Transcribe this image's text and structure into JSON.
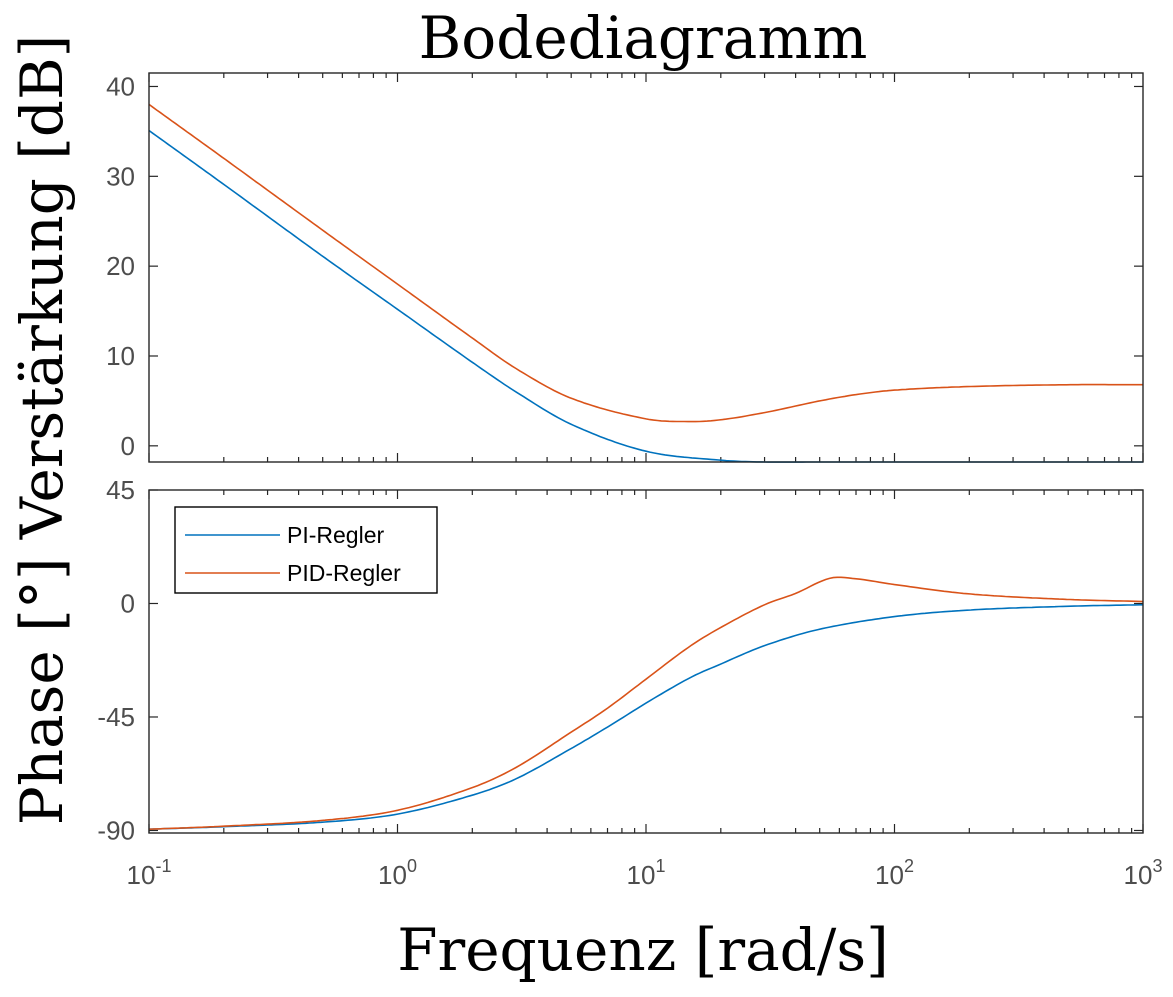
{
  "chart_data": {
    "type": "line",
    "title": "Bodediagramm",
    "xlabel": "Frequenz [rad/s]",
    "ylabel": "Phase [°] Verstärkung [dB]",
    "xscale": "log",
    "xlim": [
      0.1,
      1000
    ],
    "x_ticks": [
      {
        "base": "10",
        "exp": "-1"
      },
      {
        "base": "10",
        "exp": "0"
      },
      {
        "base": "10",
        "exp": "1"
      },
      {
        "base": "10",
        "exp": "2"
      },
      {
        "base": "10",
        "exp": "3"
      }
    ],
    "legend": {
      "placement": "top-left",
      "entries": [
        "PI-Regler",
        "PID-Regler"
      ]
    },
    "colors": {
      "pi": "#0072BD",
      "pid": "#D95319",
      "axes": "#262626",
      "ticklabels": "#4d4d4d"
    },
    "subplots": [
      {
        "name": "magnitude",
        "unit": "dB",
        "ylim": [
          -1.8,
          41.5
        ],
        "yticks": [
          "40",
          "30",
          "20",
          "10",
          "0"
        ],
        "ytick_values": [
          40,
          30,
          20,
          10,
          0
        ],
        "series": [
          {
            "name": "PI-Regler",
            "x": [
              0.1,
              0.2,
              0.5,
              1,
              2,
              3,
              5,
              10,
              20,
              30,
              50,
              100,
              200,
              500,
              1000
            ],
            "y": [
              35.1,
              29.1,
              21.1,
              15.2,
              9.3,
              6.0,
              2.4,
              -0.6,
              -1.6,
              -1.8,
              -1.8,
              -1.8,
              -1.8,
              -1.8,
              -1.8
            ]
          },
          {
            "name": "PID-Regler",
            "x": [
              0.1,
              0.2,
              0.5,
              1,
              2,
              3,
              5,
              10,
              15,
              20,
              30,
              50,
              70,
              100,
              200,
              500,
              1000
            ],
            "y": [
              38.0,
              32.0,
              24.0,
              18.0,
              12.0,
              8.6,
              5.3,
              3.0,
              2.7,
              2.9,
              3.7,
              5.0,
              5.7,
              6.2,
              6.6,
              6.8,
              6.8
            ]
          }
        ]
      },
      {
        "name": "phase",
        "unit": "°",
        "ylim": [
          -91,
          45
        ],
        "yticks": [
          "45",
          "0",
          "-45",
          "-90"
        ],
        "ytick_values": [
          45,
          0,
          -45,
          -90
        ],
        "series": [
          {
            "name": "PI-Regler",
            "x": [
              0.1,
              0.2,
              0.5,
              1,
              2,
              3,
              5,
              7,
              10,
              15,
              20,
              30,
              50,
              100,
              200,
              500,
              1000
            ],
            "y": [
              -89.5,
              -88.5,
              -86.7,
              -83.5,
              -76,
              -69.5,
              -57.5,
              -49,
              -39.5,
              -29.5,
              -24,
              -16.7,
              -10.2,
              -5.2,
              -2.6,
              -1.1,
              -0.5
            ]
          },
          {
            "name": "PID-Regler",
            "x": [
              0.1,
              0.2,
              0.5,
              1,
              2,
              3,
              5,
              7,
              10,
              15,
              20,
              30,
              40,
              55,
              70,
              100,
              200,
              500,
              1000
            ],
            "y": [
              -89.5,
              -88.3,
              -86,
              -82,
              -73,
              -65,
              -51,
              -41.5,
              -30,
              -17,
              -9.5,
              -0.5,
              4,
              10,
              9.8,
              7.5,
              3.8,
              1.6,
              0.8
            ]
          }
        ]
      }
    ]
  }
}
